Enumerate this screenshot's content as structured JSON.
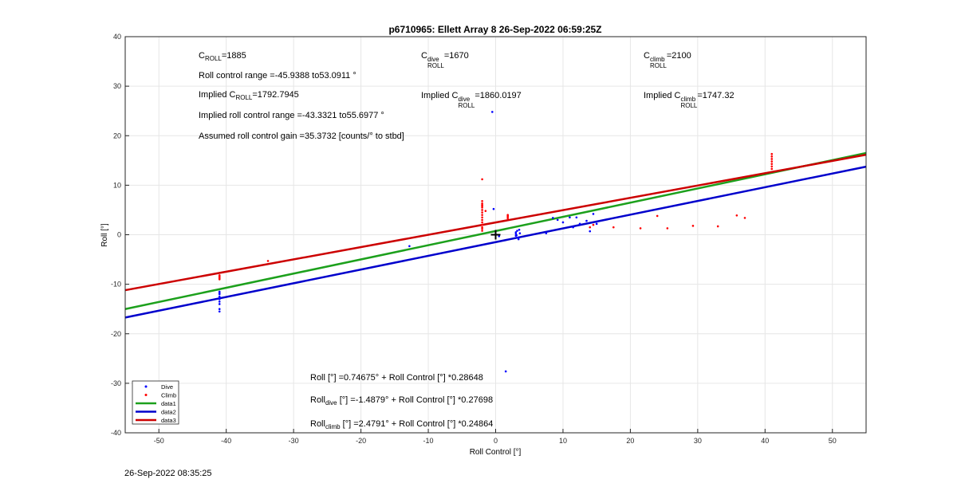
{
  "chart_data": {
    "type": "scatter",
    "title": "p6710965: Ellett Array 8 26-Sep-2022 06:59:25Z",
    "xlabel": "Roll Control [°]",
    "ylabel": "Roll [°]",
    "xlim": [
      -55,
      55
    ],
    "ylim": [
      -40,
      40
    ],
    "xticks": [
      -50,
      -40,
      -30,
      -20,
      -10,
      0,
      10,
      20,
      30,
      40,
      50
    ],
    "yticks": [
      -40,
      -30,
      -20,
      -10,
      0,
      10,
      20,
      30,
      40
    ],
    "grid": true,
    "legend_position": "bottom-left",
    "colors": {
      "dive": "#0000ff",
      "climb": "#ff0000",
      "data1": "#1ca01c",
      "data2": "#0000cc",
      "data3": "#cc0000"
    },
    "series": [
      {
        "name": "Dive",
        "kind": "markers",
        "points": [
          [
            -41,
            -11.5
          ],
          [
            -41,
            -12
          ],
          [
            -41,
            -12.5
          ],
          [
            -41,
            -13
          ],
          [
            -41,
            -13.5
          ],
          [
            -41,
            -14
          ],
          [
            -41,
            -15
          ],
          [
            -41,
            -15.5
          ],
          [
            -41,
            -12.8
          ],
          [
            -41,
            -11.8
          ],
          [
            -12.8,
            -2.3
          ],
          [
            -0.5,
            24.8
          ],
          [
            -0.3,
            5.2
          ],
          [
            1.5,
            -27.6
          ],
          [
            0.5,
            -0.3
          ],
          [
            3,
            0.2
          ],
          [
            3,
            0.5
          ],
          [
            3,
            -0.2
          ],
          [
            3.2,
            0.8
          ],
          [
            3.3,
            -0.6
          ],
          [
            3.5,
            1
          ],
          [
            3.4,
            -0.9
          ],
          [
            3.6,
            0.3
          ],
          [
            3.1,
            -0.1
          ],
          [
            7.5,
            0.3
          ],
          [
            8.5,
            3.4
          ],
          [
            10,
            2.5
          ],
          [
            11,
            3.5
          ],
          [
            12,
            3.5
          ],
          [
            12.5,
            2.2
          ],
          [
            13.5,
            2.8
          ],
          [
            14,
            0.7
          ],
          [
            14.5,
            4.2
          ],
          [
            15,
            2.2
          ],
          [
            11.5,
            1.5
          ],
          [
            9.2,
            3
          ]
        ]
      },
      {
        "name": "Climb",
        "kind": "markers",
        "points": [
          [
            -41,
            -8.2
          ],
          [
            -41,
            -8.6
          ],
          [
            -41,
            -9
          ],
          [
            -41,
            -8.4
          ],
          [
            -41,
            -8.8
          ],
          [
            -33.8,
            -5.3
          ],
          [
            -2,
            11.2
          ],
          [
            -2,
            6.8
          ],
          [
            -2,
            6
          ],
          [
            -2,
            5.5
          ],
          [
            -2,
            5
          ],
          [
            -2,
            4.5
          ],
          [
            -2,
            4
          ],
          [
            -2,
            3.5
          ],
          [
            -2,
            3
          ],
          [
            -2,
            2.5
          ],
          [
            -2,
            2
          ],
          [
            -2,
            1.5
          ],
          [
            -2,
            1.2
          ],
          [
            -2,
            0.8
          ],
          [
            -2,
            6.3
          ],
          [
            -2,
            5.8
          ],
          [
            -1.5,
            4.8
          ],
          [
            1.8,
            4
          ],
          [
            1.8,
            3.6
          ],
          [
            1.8,
            3.3
          ],
          [
            1.8,
            3.8
          ],
          [
            14,
            1.5
          ],
          [
            14.5,
            2
          ],
          [
            17.5,
            1.5
          ],
          [
            21.5,
            1.3
          ],
          [
            24,
            3.8
          ],
          [
            25.5,
            1.3
          ],
          [
            29.3,
            1.8
          ],
          [
            33,
            1.7
          ],
          [
            35.8,
            3.9
          ],
          [
            37,
            3.4
          ],
          [
            41,
            16.3
          ],
          [
            41,
            15.8
          ],
          [
            41,
            15.3
          ],
          [
            41,
            14.8
          ],
          [
            41,
            14.3
          ],
          [
            41,
            13.8
          ],
          [
            41,
            13.3
          ]
        ]
      },
      {
        "name": "data1",
        "kind": "line",
        "slope": 0.28648,
        "intercept": 0.74675
      },
      {
        "name": "data2",
        "kind": "line",
        "slope": 0.27698,
        "intercept": -1.4879
      },
      {
        "name": "data3",
        "kind": "line",
        "slope": 0.24864,
        "intercept": 2.4791
      }
    ],
    "origin_marker": [
      0,
      0
    ]
  },
  "annotations": {
    "c_roll_prefix": "C",
    "c_roll_sub": "ROLL",
    "c_roll_value": "=1885",
    "c_dive_prefix": "C",
    "c_dive_sup": "dive",
    "c_dive_sub": "ROLL",
    "c_dive_value": "=1670",
    "c_climb_prefix": "C",
    "c_climb_sup": "climb",
    "c_climb_sub": "ROLL",
    "c_climb_value": "=2100",
    "roll_range": "Roll control range =-45.9388 to53.0911 °",
    "implied_prefix": "Implied C",
    "implied_sub": "ROLL",
    "implied_value": "=1792.7945",
    "implied_dive_prefix": "Implied C",
    "implied_dive_sup": "dive",
    "implied_dive_sub": "ROLL",
    "implied_dive_value": "=1860.0197",
    "implied_climb_prefix": "Implied C",
    "implied_climb_sup": "climb",
    "implied_climb_sub": "ROLL",
    "implied_climb_value": "=1747.32",
    "implied_range": "Implied roll control range =-43.3321 to55.6977 °",
    "gain": "Assumed roll control gain =35.3732 [counts/° to stbd]",
    "eq_all": "Roll [°] =0.74675° + Roll Control [°] *0.28648",
    "eq_dive_prefix": "Roll",
    "eq_dive_sub": "dive",
    "eq_dive_rest": " [°] =-1.4879° + Roll Control [°] *0.27698",
    "eq_climb_prefix": "Roll",
    "eq_climb_sub": "climb",
    "eq_climb_rest": " [°] =2.4791° + Roll Control [°] *0.24864"
  },
  "footer": {
    "timestamp": "26-Sep-2022 08:35:25"
  }
}
